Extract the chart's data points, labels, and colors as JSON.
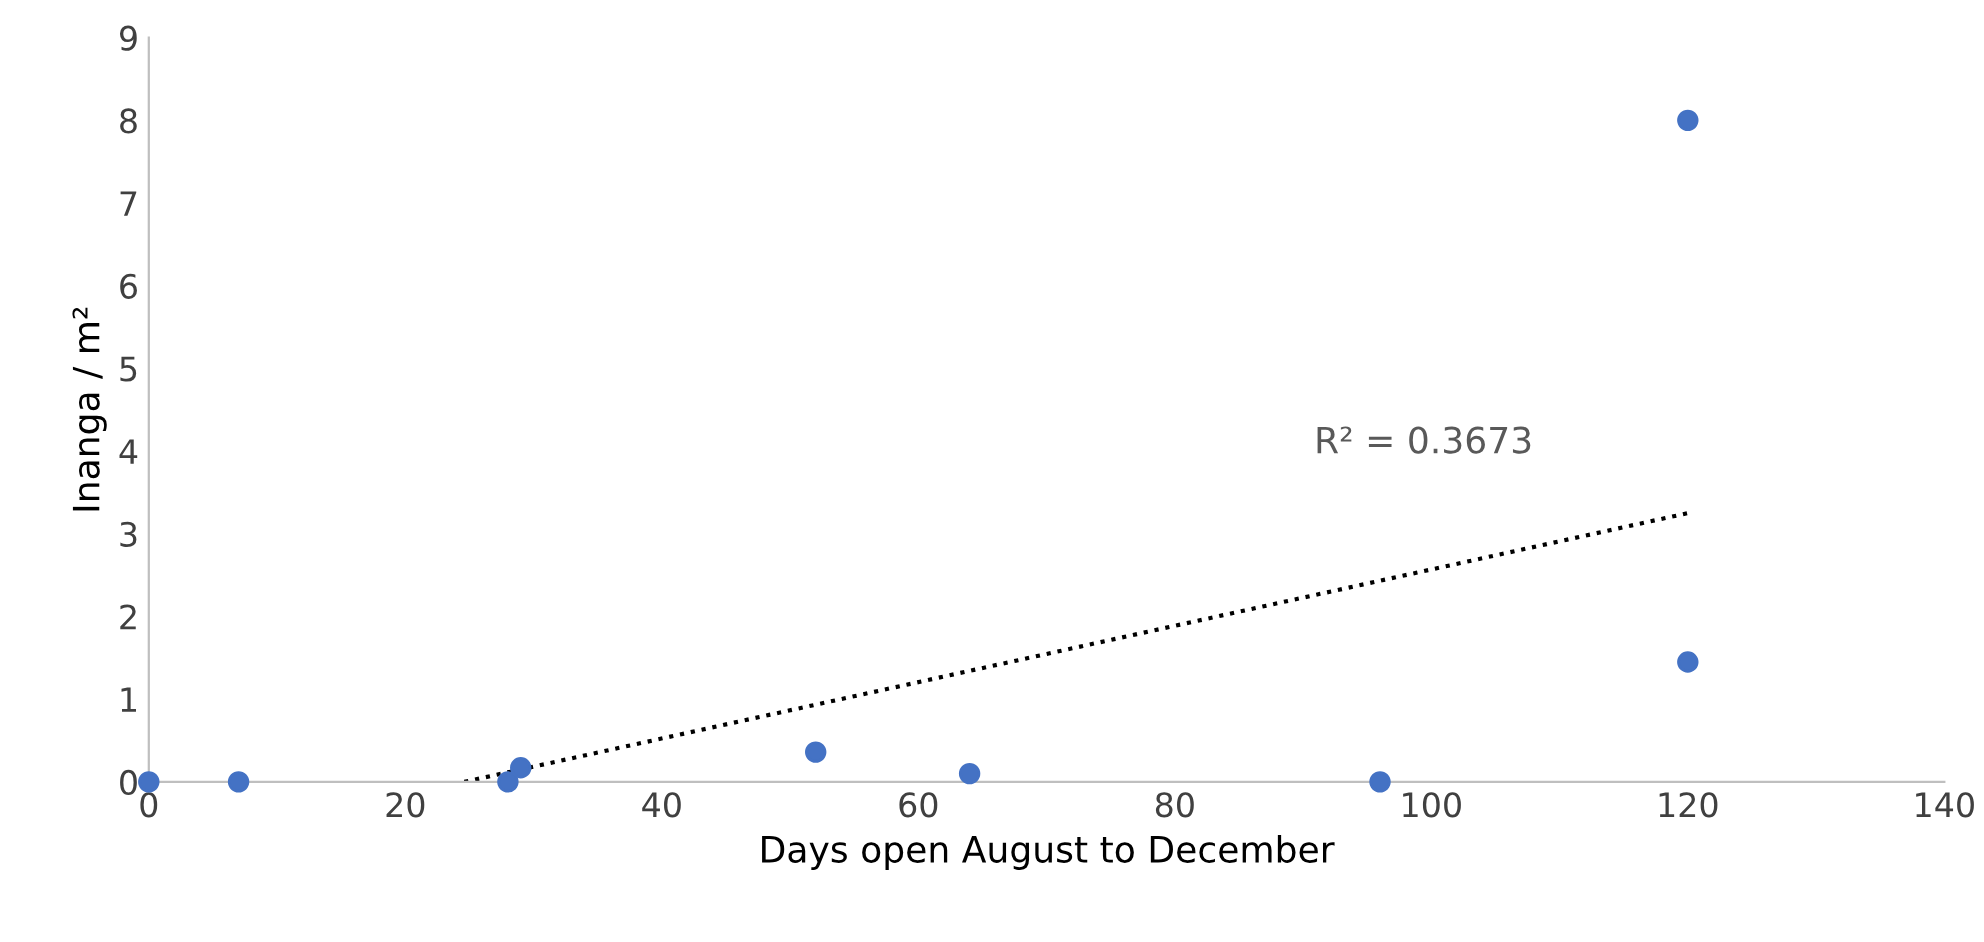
{
  "chart_data": {
    "type": "scatter",
    "xlabel": "Days open August to December",
    "ylabel": "Inanga / m²",
    "xlim": [
      0,
      140
    ],
    "ylim": [
      0,
      9
    ],
    "xticks": [
      0,
      20,
      40,
      60,
      80,
      100,
      120,
      140
    ],
    "yticks": [
      0,
      1,
      2,
      3,
      4,
      5,
      6,
      7,
      8,
      9
    ],
    "grid": false,
    "legend": false,
    "series": [
      {
        "marker": "circle",
        "color": "#4472c4",
        "x": [
          0,
          7,
          28,
          29,
          52,
          64,
          96,
          120,
          120
        ],
        "values": [
          0,
          0,
          0,
          0.17,
          0.36,
          0.1,
          0,
          8,
          1.45
        ]
      },
      {
        "type": "line",
        "color": "#000000",
        "line_style": "dotted",
        "x": [
          24.6,
          120
        ],
        "values": [
          0,
          3.25
        ]
      }
    ],
    "annotations": [
      "R² = 0.3673"
    ]
  }
}
